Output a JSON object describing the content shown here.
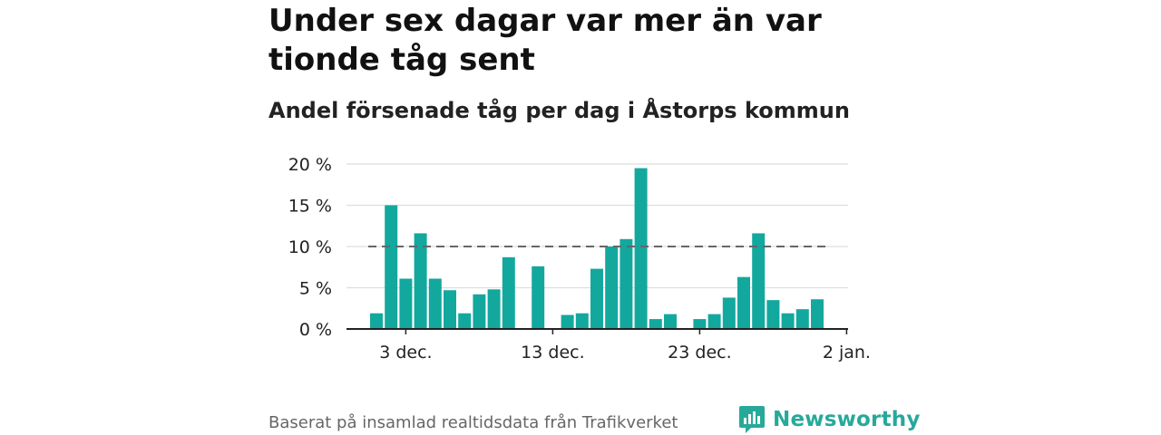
{
  "title": "Under sex dagar var mer än var tionde tåg sent",
  "subtitle": "Andel försenade tåg per dag i Åstorps kommun",
  "source": "Baserat på insamlad realtidsdata från Trafikverket",
  "brand": "Newsworthy",
  "colors": {
    "bar": "#13a89e",
    "threshold": "#666666",
    "brand": "#27a99a",
    "grid": "#dddddd"
  },
  "chart_data": {
    "type": "bar",
    "x_start": "2024-12-01",
    "x": [
      "2024-12-01",
      "2024-12-02",
      "2024-12-03",
      "2024-12-04",
      "2024-12-05",
      "2024-12-06",
      "2024-12-07",
      "2024-12-08",
      "2024-12-09",
      "2024-12-10",
      "2024-12-11",
      "2024-12-12",
      "2024-12-13",
      "2024-12-14",
      "2024-12-15",
      "2024-12-16",
      "2024-12-17",
      "2024-12-18",
      "2024-12-19",
      "2024-12-20",
      "2024-12-21",
      "2024-12-22",
      "2024-12-23",
      "2024-12-24",
      "2024-12-25",
      "2024-12-26",
      "2024-12-27",
      "2024-12-28",
      "2024-12-29",
      "2024-12-30",
      "2024-12-31"
    ],
    "values": [
      1.9,
      15.0,
      6.1,
      11.6,
      6.1,
      4.7,
      1.9,
      4.2,
      4.8,
      8.7,
      null,
      7.6,
      null,
      1.7,
      1.9,
      7.3,
      10.0,
      10.9,
      19.5,
      1.2,
      1.8,
      null,
      1.2,
      1.8,
      3.8,
      6.3,
      11.6,
      3.5,
      1.9,
      2.4,
      3.6
    ],
    "reference_line": {
      "value": 10,
      "style": "dashed"
    },
    "ylim": [
      0,
      20
    ],
    "y_ticks": [
      "0 %",
      "5 %",
      "10 %",
      "15 %",
      "20 %"
    ],
    "x_ticks": [
      {
        "index": 2,
        "label": "3 dec."
      },
      {
        "index": 12,
        "label": "13 dec."
      },
      {
        "index": 22,
        "label": "23 dec."
      },
      {
        "index": 32,
        "label": "2 jan."
      }
    ],
    "grid": true
  }
}
